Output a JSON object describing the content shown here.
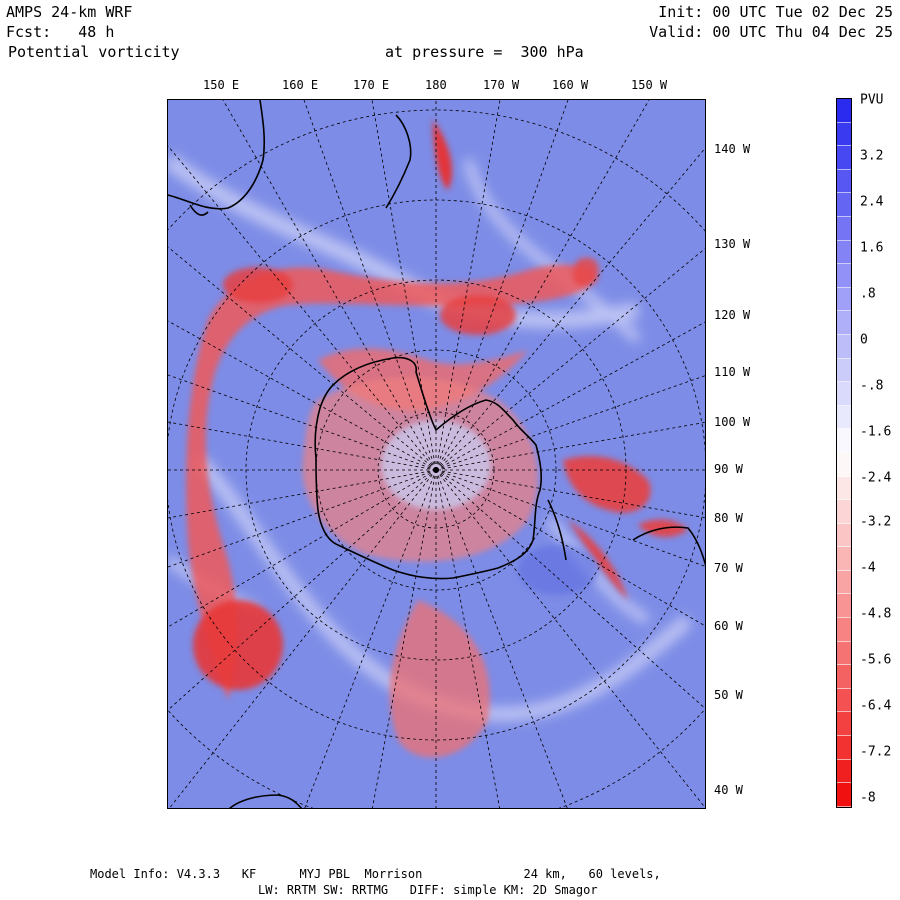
{
  "header": {
    "model": "AMPS 24-km WRF",
    "forecast": "Fcst:   48 h",
    "field": "Potential vorticity",
    "level": "at pressure =  300 hPa",
    "init": "Init: 00 UTC Tue 02 Dec 25",
    "valid": "Valid: 00 UTC Thu 04 Dec 25"
  },
  "top_axis_labels": [
    "150 E",
    "160 E",
    "170 E",
    "180",
    "170 W",
    "160 W",
    "150 W"
  ],
  "right_axis_labels": [
    "140 W",
    "130 W",
    "120 W",
    "110 W",
    "100 W",
    "90 W",
    "80 W",
    "70 W",
    "60 W",
    "50 W",
    "40 W"
  ],
  "colorbar": {
    "unit": "PVU",
    "labels": [
      "3.2",
      "2.4",
      "1.6",
      ".8",
      "0",
      "-.8",
      "-1.6",
      "-2.4",
      "-3.2",
      "-4",
      "-4.8",
      "-5.6",
      "-6.4",
      "-7.2",
      "-8"
    ],
    "top_color": "#2b2bf0",
    "mid_color": "#ffffff",
    "bottom_color": "#f01010"
  },
  "footer": {
    "line1": "Model Info: V4.3.3   KF      MYJ PBL  Morrison              24 km,   60 levels,",
    "line2": "LW: RRTM SW: RRTMG   DIFF: simple KM: 2D Smagor"
  },
  "map_colors": {
    "background": "#8090e8",
    "positive_pv": "#5a6ae0",
    "negative_pv": "#e83030",
    "white_band": "#f4f4ff",
    "coast": "#000000"
  }
}
